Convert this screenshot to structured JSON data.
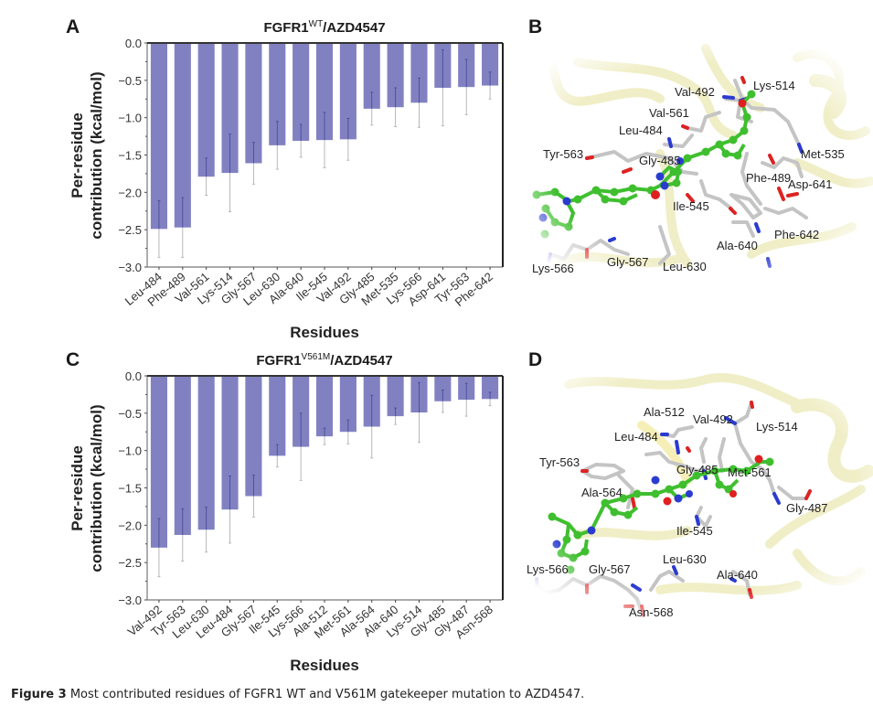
{
  "figure": {
    "caption_label": "Figure 3",
    "caption_text": " Most contributed residues of FGFR1 WT and V561M gatekeeper mutation to AZD4547."
  },
  "panels": {
    "A": {
      "letter": "A"
    },
    "B": {
      "letter": "B",
      "labels": [
        "Val-492",
        "Lys-514",
        "Val-561",
        "Leu-484",
        "Tyr-563",
        "Met-535",
        "Gly-485",
        "Phe-489",
        "Asp-641",
        "Ile-545",
        "Phe-642",
        "Ala-640",
        "Lys-566",
        "Gly-567",
        "Leu-630"
      ]
    },
    "C": {
      "letter": "C"
    },
    "D": {
      "letter": "D",
      "labels": [
        "Ala-512",
        "Val-492",
        "Lys-514",
        "Leu-484",
        "Tyr-563",
        "Gly-485",
        "Met-561",
        "Ala-564",
        "Gly-487",
        "Ile-545",
        "Leu-630",
        "Ala-640",
        "Lys-566",
        "Gly-567",
        "Asn-568"
      ]
    }
  },
  "colors": {
    "bar": "#8181c2",
    "errorbar_upper": "#4a4a9a",
    "errorbar_lower": "#b0b0b0",
    "axis": "#444444",
    "ligand_carbon": "#3fbf2f",
    "nitrogen": "#2b3bd0",
    "oxygen": "#e02020",
    "protein_stick": "#c8c8c8",
    "cartoon": "#f3f1c8"
  },
  "chart_data": [
    {
      "type": "bar",
      "panel": "A",
      "title_main": "FGFR1",
      "title_sup": "WT",
      "title_suffix": "/AZD4547",
      "xlabel": "Residues",
      "ylabel_line1": "Per-residue",
      "ylabel_line2": "contribution (kcal/mol)",
      "ylim": [
        -3.0,
        0.0
      ],
      "yticks": [
        "0.0",
        "−0.5",
        "−1.0",
        "−1.5",
        "−2.0",
        "−2.5",
        "−3.0"
      ],
      "ytick_values": [
        0.0,
        -0.5,
        -1.0,
        -1.5,
        -2.0,
        -2.5,
        -3.0
      ],
      "categories": [
        "Leu-484",
        "Phe-489",
        "Val-561",
        "Lys-514",
        "Gly-567",
        "Leu-630",
        "Ala-640",
        "Ile-545",
        "Val-492",
        "Gly-485",
        "Met-535",
        "Lys-566",
        "Asp-641",
        "Tyr-563",
        "Phe-642"
      ],
      "values": [
        -2.49,
        -2.47,
        -1.79,
        -1.74,
        -1.61,
        -1.37,
        -1.31,
        -1.3,
        -1.29,
        -0.88,
        -0.86,
        -0.8,
        -0.6,
        -0.59,
        -0.57
      ],
      "errors": [
        0.38,
        0.4,
        0.25,
        0.52,
        0.28,
        0.32,
        0.22,
        0.37,
        0.28,
        0.22,
        0.26,
        0.33,
        0.51,
        0.37,
        0.18
      ],
      "grid": false,
      "legend": "none"
    },
    {
      "type": "bar",
      "panel": "C",
      "title_main": "FGFR1",
      "title_sup": "V561M",
      "title_suffix": "/AZD4547",
      "xlabel": "Residues",
      "ylabel_line1": "Per-residue",
      "ylabel_line2": "contribution (kcal/mol)",
      "ylim": [
        -3.0,
        0.0
      ],
      "yticks": [
        "0.0",
        "−0.5",
        "−1.0",
        "−1.5",
        "−2.0",
        "−2.5",
        "−3.0"
      ],
      "ytick_values": [
        0.0,
        -0.5,
        -1.0,
        -1.5,
        -2.0,
        -2.5,
        -3.0
      ],
      "categories": [
        "Val-492",
        "Tyr-563",
        "Leu-630",
        "Leu-484",
        "Gly-567",
        "Ile-545",
        "Lys-566",
        "Ala-512",
        "Met-561",
        "Ala-564",
        "Ala-640",
        "Lys-514",
        "Gly-485",
        "Gly-487",
        "Asn-568"
      ],
      "values": [
        -2.3,
        -2.13,
        -2.06,
        -1.79,
        -1.61,
        -1.07,
        -0.95,
        -0.81,
        -0.75,
        -0.68,
        -0.54,
        -0.49,
        -0.34,
        -0.32,
        -0.31
      ],
      "errors": [
        0.39,
        0.35,
        0.3,
        0.45,
        0.28,
        0.15,
        0.45,
        0.11,
        0.16,
        0.42,
        0.11,
        0.4,
        0.15,
        0.22,
        0.09
      ],
      "grid": false,
      "legend": "none"
    }
  ]
}
